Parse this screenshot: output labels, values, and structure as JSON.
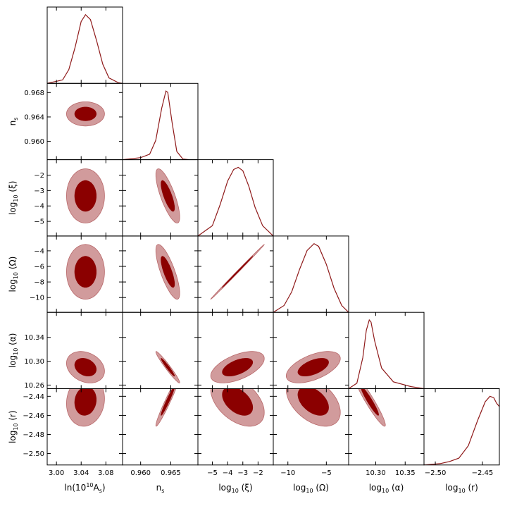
{
  "chart_data": {
    "type": "triangle",
    "params": [
      {
        "name": "ln(10^10 A_s)",
        "label_main": "ln(10",
        "label_sup": "10",
        "label_mid": "A",
        "label_sub": "s",
        "label_end": ")",
        "range": [
          2.985,
          3.107
        ],
        "ticks": [
          3.0,
          3.04,
          3.08
        ],
        "tick_labels": [
          "3.00",
          "3.04",
          "3.08"
        ],
        "mean": 3.047,
        "sigma": 0.014
      },
      {
        "name": "n_s",
        "label_main": "n",
        "label_sub": "s",
        "range": [
          0.957,
          0.9695
        ],
        "ticks": [
          0.96,
          0.965
        ],
        "tick_labels": [
          "0.960",
          "0.965"
        ],
        "ticks_y": [
          0.96,
          0.964,
          0.968
        ],
        "tick_labels_y": [
          "0.960",
          "0.964",
          "0.968"
        ],
        "mean": 0.9645,
        "sigma": 0.0009
      },
      {
        "name": "log10(xi)",
        "label_main": "log",
        "label_sub": "10",
        "label_end": " (ξ)",
        "range": [
          -5.95,
          -1.0
        ],
        "ticks": [
          -5,
          -4,
          -3,
          -2
        ],
        "tick_labels": [
          "−5",
          "−4",
          "−3",
          "−2"
        ],
        "ticks_y": [
          -5,
          -4,
          -3,
          -2
        ],
        "tick_labels_y": [
          "−5",
          "−4",
          "−3",
          "−2"
        ],
        "mean": -3.35,
        "sigma": 0.8
      },
      {
        "name": "log10(Omega)",
        "label_main": "log",
        "label_sub": "10",
        "label_end": " (Ω)",
        "range": [
          -11.9,
          -2.1
        ],
        "ticks": [
          -10,
          -5
        ],
        "tick_labels": [
          "−10",
          "−5"
        ],
        "ticks_y": [
          -10,
          -8,
          -6,
          -4
        ],
        "tick_labels_y": [
          "−10",
          "−8",
          "−6",
          "−4"
        ],
        "mean": -6.7,
        "sigma": 1.6
      },
      {
        "name": "log10(alpha)",
        "label_main": "log",
        "label_sub": "10",
        "label_end": " (α)",
        "range": [
          10.254,
          10.382
        ],
        "ticks": [
          10.3,
          10.35
        ],
        "tick_labels": [
          "10.30",
          "10.35"
        ],
        "ticks_y": [
          10.26,
          10.3,
          10.34
        ],
        "tick_labels_y": [
          "10.26",
          "10.30",
          "10.34"
        ],
        "mean": 10.29,
        "sigma": 0.012
      },
      {
        "name": "log10(r)",
        "label_main": "log",
        "label_sub": "10",
        "label_end": " (r)",
        "range": [
          -2.512,
          -2.432
        ],
        "ticks": [
          -2.5,
          -2.45
        ],
        "tick_labels": [
          "−2.50",
          "−2.45"
        ],
        "ticks_y": [
          -2.5,
          -2.48,
          -2.46,
          -2.44
        ],
        "tick_labels_y": [
          "−2.50",
          "−2.48",
          "−2.46",
          "−2.44"
        ],
        "mean": -2.445,
        "sigma": 0.012
      }
    ],
    "contour_levels": [
      "68%",
      "95%"
    ],
    "colors": {
      "outer_fill": "#d19b9c",
      "inner_fill": "#8b0000",
      "line": "#8f1a1a",
      "edge": "#b8686a"
    },
    "marginals": [
      {
        "x": [
          2.985,
          3.01,
          3.02,
          3.03,
          3.04,
          3.047,
          3.055,
          3.065,
          3.075,
          3.085,
          3.1,
          3.107
        ],
        "p": [
          0.0,
          0.05,
          0.2,
          0.52,
          0.9,
          1.0,
          0.93,
          0.62,
          0.28,
          0.08,
          0.01,
          0.0
        ]
      },
      {
        "x": [
          0.957,
          0.96,
          0.9615,
          0.9625,
          0.9635,
          0.9642,
          0.9645,
          0.9652,
          0.966,
          0.967,
          0.968
        ],
        "p": [
          0.0,
          0.03,
          0.08,
          0.28,
          0.75,
          1.0,
          0.98,
          0.55,
          0.12,
          0.01,
          0.0
        ]
      },
      {
        "x": [
          -5.95,
          -5.0,
          -4.5,
          -4.0,
          -3.6,
          -3.3,
          -3.0,
          -2.6,
          -2.2,
          -1.7,
          -1.0
        ],
        "p": [
          0.0,
          0.15,
          0.45,
          0.8,
          0.97,
          1.0,
          0.95,
          0.72,
          0.42,
          0.15,
          0.0
        ]
      },
      {
        "x": [
          -11.9,
          -10.5,
          -9.5,
          -8.5,
          -7.5,
          -6.6,
          -6.0,
          -5.0,
          -4.0,
          -3.0,
          -2.1
        ],
        "p": [
          0.0,
          0.1,
          0.3,
          0.62,
          0.9,
          1.0,
          0.96,
          0.7,
          0.35,
          0.1,
          0.0
        ]
      },
      {
        "x": [
          10.254,
          10.268,
          10.278,
          10.284,
          10.289,
          10.292,
          10.298,
          10.31,
          10.33,
          10.36,
          10.382
        ],
        "p": [
          0.0,
          0.08,
          0.45,
          0.85,
          1.0,
          0.97,
          0.7,
          0.3,
          0.1,
          0.03,
          0.0
        ]
      },
      {
        "x": [
          -2.512,
          -2.495,
          -2.485,
          -2.475,
          -2.465,
          -2.455,
          -2.447,
          -2.442,
          -2.438,
          -2.435,
          -2.432
        ],
        "p": [
          0.0,
          0.02,
          0.05,
          0.1,
          0.28,
          0.65,
          0.92,
          1.0,
          0.98,
          0.9,
          0.85
        ]
      }
    ]
  }
}
